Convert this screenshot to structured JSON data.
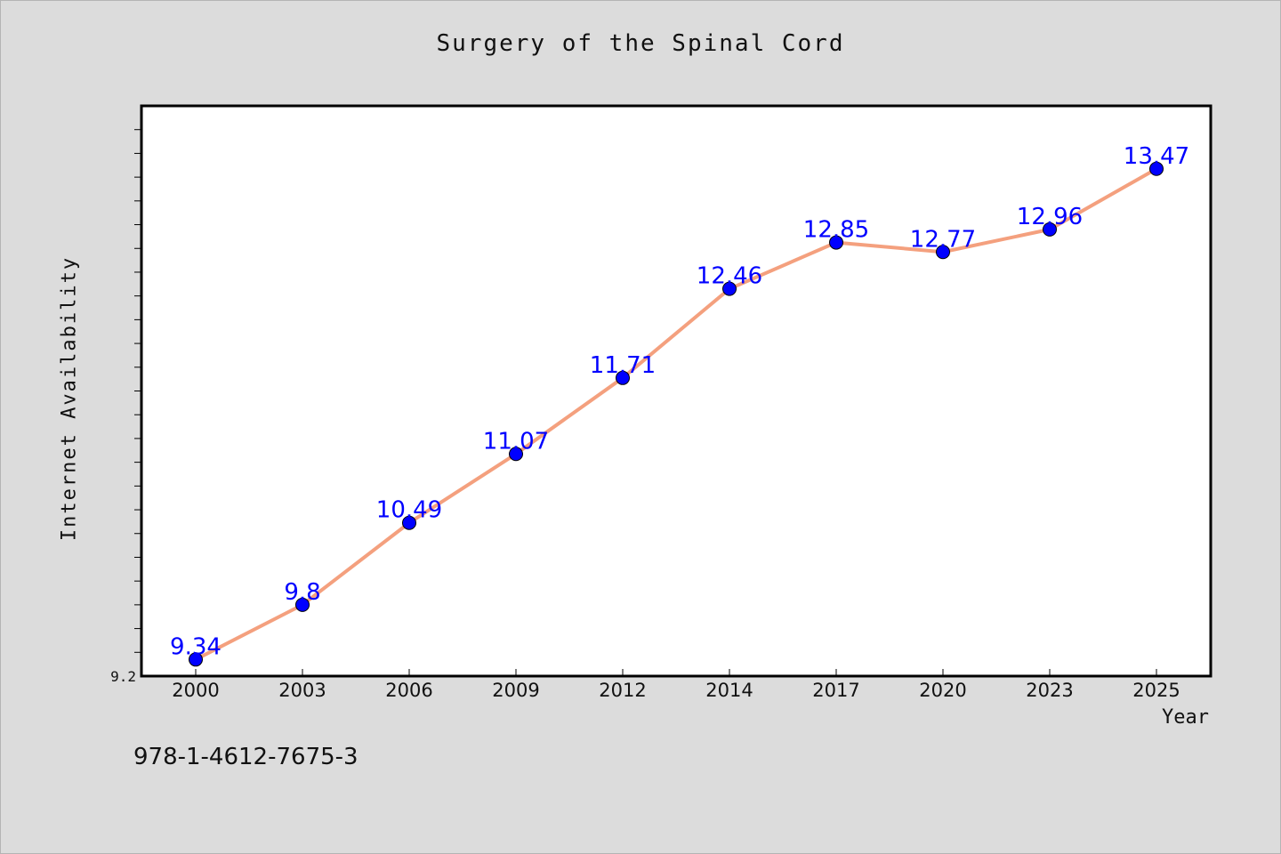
{
  "chart_data": {
    "type": "line",
    "title": "Surgery of the Spinal Cord",
    "xlabel": "Year",
    "ylabel": "Internet Availability",
    "x": [
      "2000",
      "2003",
      "2006",
      "2009",
      "2012",
      "2014",
      "2017",
      "2020",
      "2023",
      "2025"
    ],
    "series": [
      {
        "values": [
          9.34,
          9.8,
          10.49,
          11.07,
          11.71,
          12.46,
          12.85,
          12.77,
          12.96,
          13.47
        ],
        "labels": [
          "9.34",
          "9.8",
          "10.49",
          "11.07",
          "11.71",
          "12.46",
          "12.85",
          "12.77",
          "12.96",
          "13.47"
        ]
      }
    ],
    "ylim": [
      9.2,
      14.0
    ],
    "yticks": [
      "9.2"
    ],
    "grid": false,
    "line_color": "#f4a07e",
    "marker_color": "#0000ff",
    "label_color": "#0000ff"
  },
  "footer": {
    "isbn": "978-1-4612-7675-3"
  }
}
